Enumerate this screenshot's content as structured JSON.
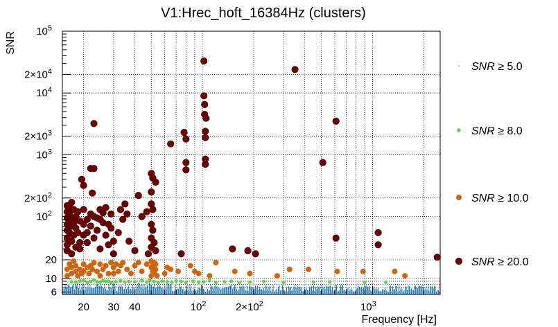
{
  "chart_data": {
    "type": "scatter",
    "title": "V1:Hrec_hoft_16384Hz (clusters)",
    "xlabel": "Frequency [Hz]",
    "ylabel": "SNR",
    "xscale": "log",
    "yscale": "log",
    "xlim": [
      15,
      2500
    ],
    "ylim": [
      5.5,
      100000
    ],
    "grid": true,
    "x_ticks": [
      {
        "value": 20,
        "label": "20"
      },
      {
        "value": 30,
        "label": "30"
      },
      {
        "value": 40,
        "label": "40"
      },
      {
        "value": 100,
        "label": "10",
        "sup": "2"
      },
      {
        "value": 200,
        "label": "2×10",
        "sup": "2"
      },
      {
        "value": 1000,
        "label": "10",
        "sup": "3"
      }
    ],
    "y_ticks": [
      {
        "value": 6,
        "label": "6"
      },
      {
        "value": 10,
        "label": "10"
      },
      {
        "value": 20,
        "label": "20"
      },
      {
        "value": 100,
        "label": "10",
        "sup": "2"
      },
      {
        "value": 200,
        "label": "2×10",
        "sup": "2"
      },
      {
        "value": 1000,
        "label": "10",
        "sup": "3"
      },
      {
        "value": 2000,
        "label": "2×10",
        "sup": "3"
      },
      {
        "value": 10000,
        "label": "10",
        "sup": "4"
      },
      {
        "value": 20000,
        "label": "2×10",
        "sup": "4"
      },
      {
        "value": 100000,
        "label": "10",
        "sup": "5"
      }
    ],
    "legend": {
      "placement": "right",
      "entries": [
        {
          "label": "SNR ≥ 5.0",
          "var": "SNR",
          "rest": "≥ 5.0",
          "color": "#1f77b4"
        },
        {
          "label": "SNR ≥ 8.0",
          "var": "SNR",
          "rest": "≥ 8.0",
          "color": "#66cc55"
        },
        {
          "label": "SNR ≥ 10.0",
          "var": "SNR",
          "rest": "≥ 10.0",
          "color": "#cc6611"
        },
        {
          "label": "SNR ≥ 20.0",
          "var": "SNR",
          "rest": "≥ 20.0",
          "color": "#6b0000"
        }
      ]
    },
    "series": [
      {
        "name": "SNR ≥ 5.0",
        "color": "#1f77b4",
        "marker": "dot",
        "note": "dense band of low-SNR clusters across all frequencies",
        "points": []
      },
      {
        "name": "SNR ≥ 8.0",
        "color": "#66cc55",
        "marker": "small-circle",
        "points": [
          [
            17,
            8.8
          ],
          [
            18,
            8.7
          ],
          [
            19,
            9.1
          ],
          [
            20,
            9.3
          ],
          [
            21,
            8.6
          ],
          [
            22,
            8.9
          ],
          [
            23,
            9.4
          ],
          [
            24,
            8.8
          ],
          [
            25,
            8.7
          ],
          [
            26,
            9.2
          ],
          [
            27,
            8.9
          ],
          [
            28,
            9.0
          ],
          [
            29,
            8.6
          ],
          [
            31,
            8.8
          ],
          [
            33,
            9.1
          ],
          [
            35,
            8.7
          ],
          [
            37,
            8.9
          ],
          [
            40,
            8.8
          ],
          [
            44,
            9.2
          ],
          [
            47,
            8.7
          ],
          [
            49,
            9.3
          ],
          [
            52,
            8.9
          ],
          [
            55,
            8.6
          ],
          [
            58,
            9.0
          ],
          [
            62,
            8.8
          ],
          [
            66,
            8.7
          ],
          [
            70,
            9.1
          ],
          [
            75,
            8.9
          ],
          [
            80,
            8.6
          ],
          [
            88,
            9.0
          ],
          [
            95,
            8.7
          ],
          [
            102,
            8.8
          ],
          [
            110,
            9.2
          ],
          [
            120,
            8.6
          ],
          [
            135,
            8.8
          ],
          [
            148,
            9.0
          ],
          [
            165,
            8.6
          ],
          [
            190,
            8.7
          ],
          [
            230,
            8.9
          ],
          [
            300,
            8.6
          ],
          [
            450,
            8.7
          ],
          [
            560,
            8.8
          ],
          [
            900,
            8.6
          ],
          [
            1200,
            8.7
          ]
        ]
      },
      {
        "name": "SNR ≥ 10.0",
        "color": "#cc6611",
        "marker": "circle",
        "points": [
          [
            16,
            14
          ],
          [
            16,
            11
          ],
          [
            16.5,
            17
          ],
          [
            17,
            12
          ],
          [
            17,
            15
          ],
          [
            17.5,
            19
          ],
          [
            18,
            13
          ],
          [
            18,
            16
          ],
          [
            18.5,
            11
          ],
          [
            19,
            14
          ],
          [
            19.5,
            12
          ],
          [
            20,
            17
          ],
          [
            20,
            13
          ],
          [
            21,
            15
          ],
          [
            21.5,
            12
          ],
          [
            22,
            16
          ],
          [
            22.5,
            14
          ],
          [
            23,
            18
          ],
          [
            24,
            13
          ],
          [
            25,
            17
          ],
          [
            25,
            11
          ],
          [
            26,
            14
          ],
          [
            27,
            16
          ],
          [
            28,
            12
          ],
          [
            29,
            18
          ],
          [
            30,
            15
          ],
          [
            30,
            12
          ],
          [
            31,
            17
          ],
          [
            32,
            13
          ],
          [
            33,
            16
          ],
          [
            34,
            18
          ],
          [
            36,
            14
          ],
          [
            38,
            12
          ],
          [
            40,
            16
          ],
          [
            42,
            18
          ],
          [
            44,
            13
          ],
          [
            47,
            17
          ],
          [
            50,
            15
          ],
          [
            50,
            11
          ],
          [
            50,
            19
          ],
          [
            51,
            13
          ],
          [
            51,
            16
          ],
          [
            52,
            18
          ],
          [
            52,
            12
          ],
          [
            53,
            14
          ],
          [
            53,
            17
          ],
          [
            54,
            11
          ],
          [
            60,
            12
          ],
          [
            62,
            15
          ],
          [
            65,
            14
          ],
          [
            72,
            13
          ],
          [
            85,
            16
          ],
          [
            90,
            13
          ],
          [
            95,
            12
          ],
          [
            110,
            11
          ],
          [
            120,
            18
          ],
          [
            155,
            13
          ],
          [
            190,
            12
          ],
          [
            275,
            11
          ],
          [
            325,
            14
          ],
          [
            420,
            14
          ],
          [
            620,
            13
          ],
          [
            880,
            13
          ],
          [
            1350,
            13
          ],
          [
            1550,
            11
          ]
        ]
      },
      {
        "name": "SNR ≥ 20.0",
        "color": "#6b0000",
        "marker": "big-circle",
        "points": [
          [
            16,
            150
          ],
          [
            16,
            120
          ],
          [
            16,
            95
          ],
          [
            16,
            75
          ],
          [
            16,
            60
          ],
          [
            16,
            45
          ],
          [
            16,
            35
          ],
          [
            16,
            28
          ],
          [
            16.5,
            140
          ],
          [
            16.5,
            110
          ],
          [
            16.5,
            85
          ],
          [
            16.5,
            55
          ],
          [
            17,
            170
          ],
          [
            17,
            90
          ],
          [
            17,
            70
          ],
          [
            17,
            40
          ],
          [
            17,
            25
          ],
          [
            17.5,
            130
          ],
          [
            17.5,
            80
          ],
          [
            17.5,
            50
          ],
          [
            18,
            100
          ],
          [
            18,
            65
          ],
          [
            18,
            32
          ],
          [
            18.5,
            120
          ],
          [
            18.5,
            55
          ],
          [
            19,
            85
          ],
          [
            19,
            38
          ],
          [
            19,
            30
          ],
          [
            19.5,
            400
          ],
          [
            20,
            320
          ],
          [
            20,
            130
          ],
          [
            20,
            75
          ],
          [
            20,
            50
          ],
          [
            21,
            90
          ],
          [
            21,
            55
          ],
          [
            21,
            38
          ],
          [
            22,
            600
          ],
          [
            22,
            110
          ],
          [
            22,
            70
          ],
          [
            22.5,
            240
          ],
          [
            23,
            600
          ],
          [
            23,
            3200
          ],
          [
            23,
            100
          ],
          [
            23,
            45
          ],
          [
            24,
            95
          ],
          [
            24,
            60
          ],
          [
            25,
            130
          ],
          [
            25,
            90
          ],
          [
            25,
            30
          ],
          [
            26,
            115
          ],
          [
            26,
            80
          ],
          [
            27,
            140
          ],
          [
            27,
            50
          ],
          [
            28,
            75
          ],
          [
            28,
            35
          ],
          [
            29,
            110
          ],
          [
            29,
            65
          ],
          [
            30,
            40
          ],
          [
            30,
            25
          ],
          [
            32,
            55
          ],
          [
            33,
            130
          ],
          [
            34,
            90
          ],
          [
            35,
            160
          ],
          [
            36,
            110
          ],
          [
            37,
            40
          ],
          [
            40,
            28
          ],
          [
            42,
            220
          ],
          [
            44,
            100
          ],
          [
            47,
            120
          ],
          [
            48,
            25
          ],
          [
            50,
            500
          ],
          [
            50,
            250
          ],
          [
            50,
            160
          ],
          [
            50,
            75
          ],
          [
            50,
            45
          ],
          [
            50,
            32
          ],
          [
            51,
            420
          ],
          [
            51,
            130
          ],
          [
            51,
            60
          ],
          [
            52,
            38
          ],
          [
            53,
            360
          ],
          [
            53,
            28
          ],
          [
            65,
            1500
          ],
          [
            75,
            25
          ],
          [
            78,
            2300
          ],
          [
            80,
            1800
          ],
          [
            80,
            750
          ],
          [
            80,
            570
          ],
          [
            102,
            33000
          ],
          [
            102,
            9000
          ],
          [
            103,
            6500
          ],
          [
            103,
            4500
          ],
          [
            104,
            2400
          ],
          [
            104,
            1900
          ],
          [
            104,
            850
          ],
          [
            104,
            700
          ],
          [
            105,
            3900
          ],
          [
            150,
            30
          ],
          [
            185,
            28
          ],
          [
            205,
            25
          ],
          [
            350,
            24000
          ],
          [
            510,
            750
          ],
          [
            610,
            3500
          ],
          [
            610,
            45
          ],
          [
            1080,
            55
          ],
          [
            1080,
            35
          ],
          [
            2400,
            22
          ]
        ]
      }
    ]
  }
}
